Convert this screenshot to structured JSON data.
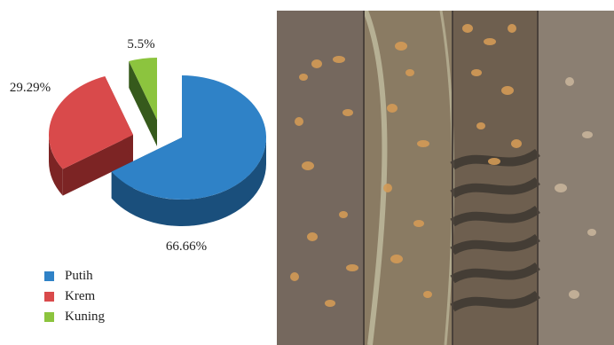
{
  "chart_data": {
    "type": "pie",
    "title": "",
    "categories": [
      "Putih",
      "Krem",
      "Kuning"
    ],
    "values": [
      66.66,
      29.29,
      5.5
    ],
    "labels": [
      "66.66%",
      "29.29%",
      "5.5%"
    ],
    "colors": {
      "Putih": {
        "top": "#2f82c7",
        "side": "#1a4f7c"
      },
      "Krem": {
        "top": "#d94a4b",
        "side": "#7c2424"
      },
      "Kuning": {
        "top": "#8cc43e",
        "side": "#365a1c"
      }
    },
    "exploded": [
      "Krem",
      "Kuning"
    ],
    "style": "3d",
    "legend_position": "bottom-left"
  },
  "photo": {
    "panels": 4,
    "depicts": "bacterial colonies on agar plates",
    "colors": {
      "background": "#6c5f55",
      "colony": "#d39a55",
      "plate_rim": "#c9c7a9",
      "stripe": "#3a342e"
    }
  }
}
